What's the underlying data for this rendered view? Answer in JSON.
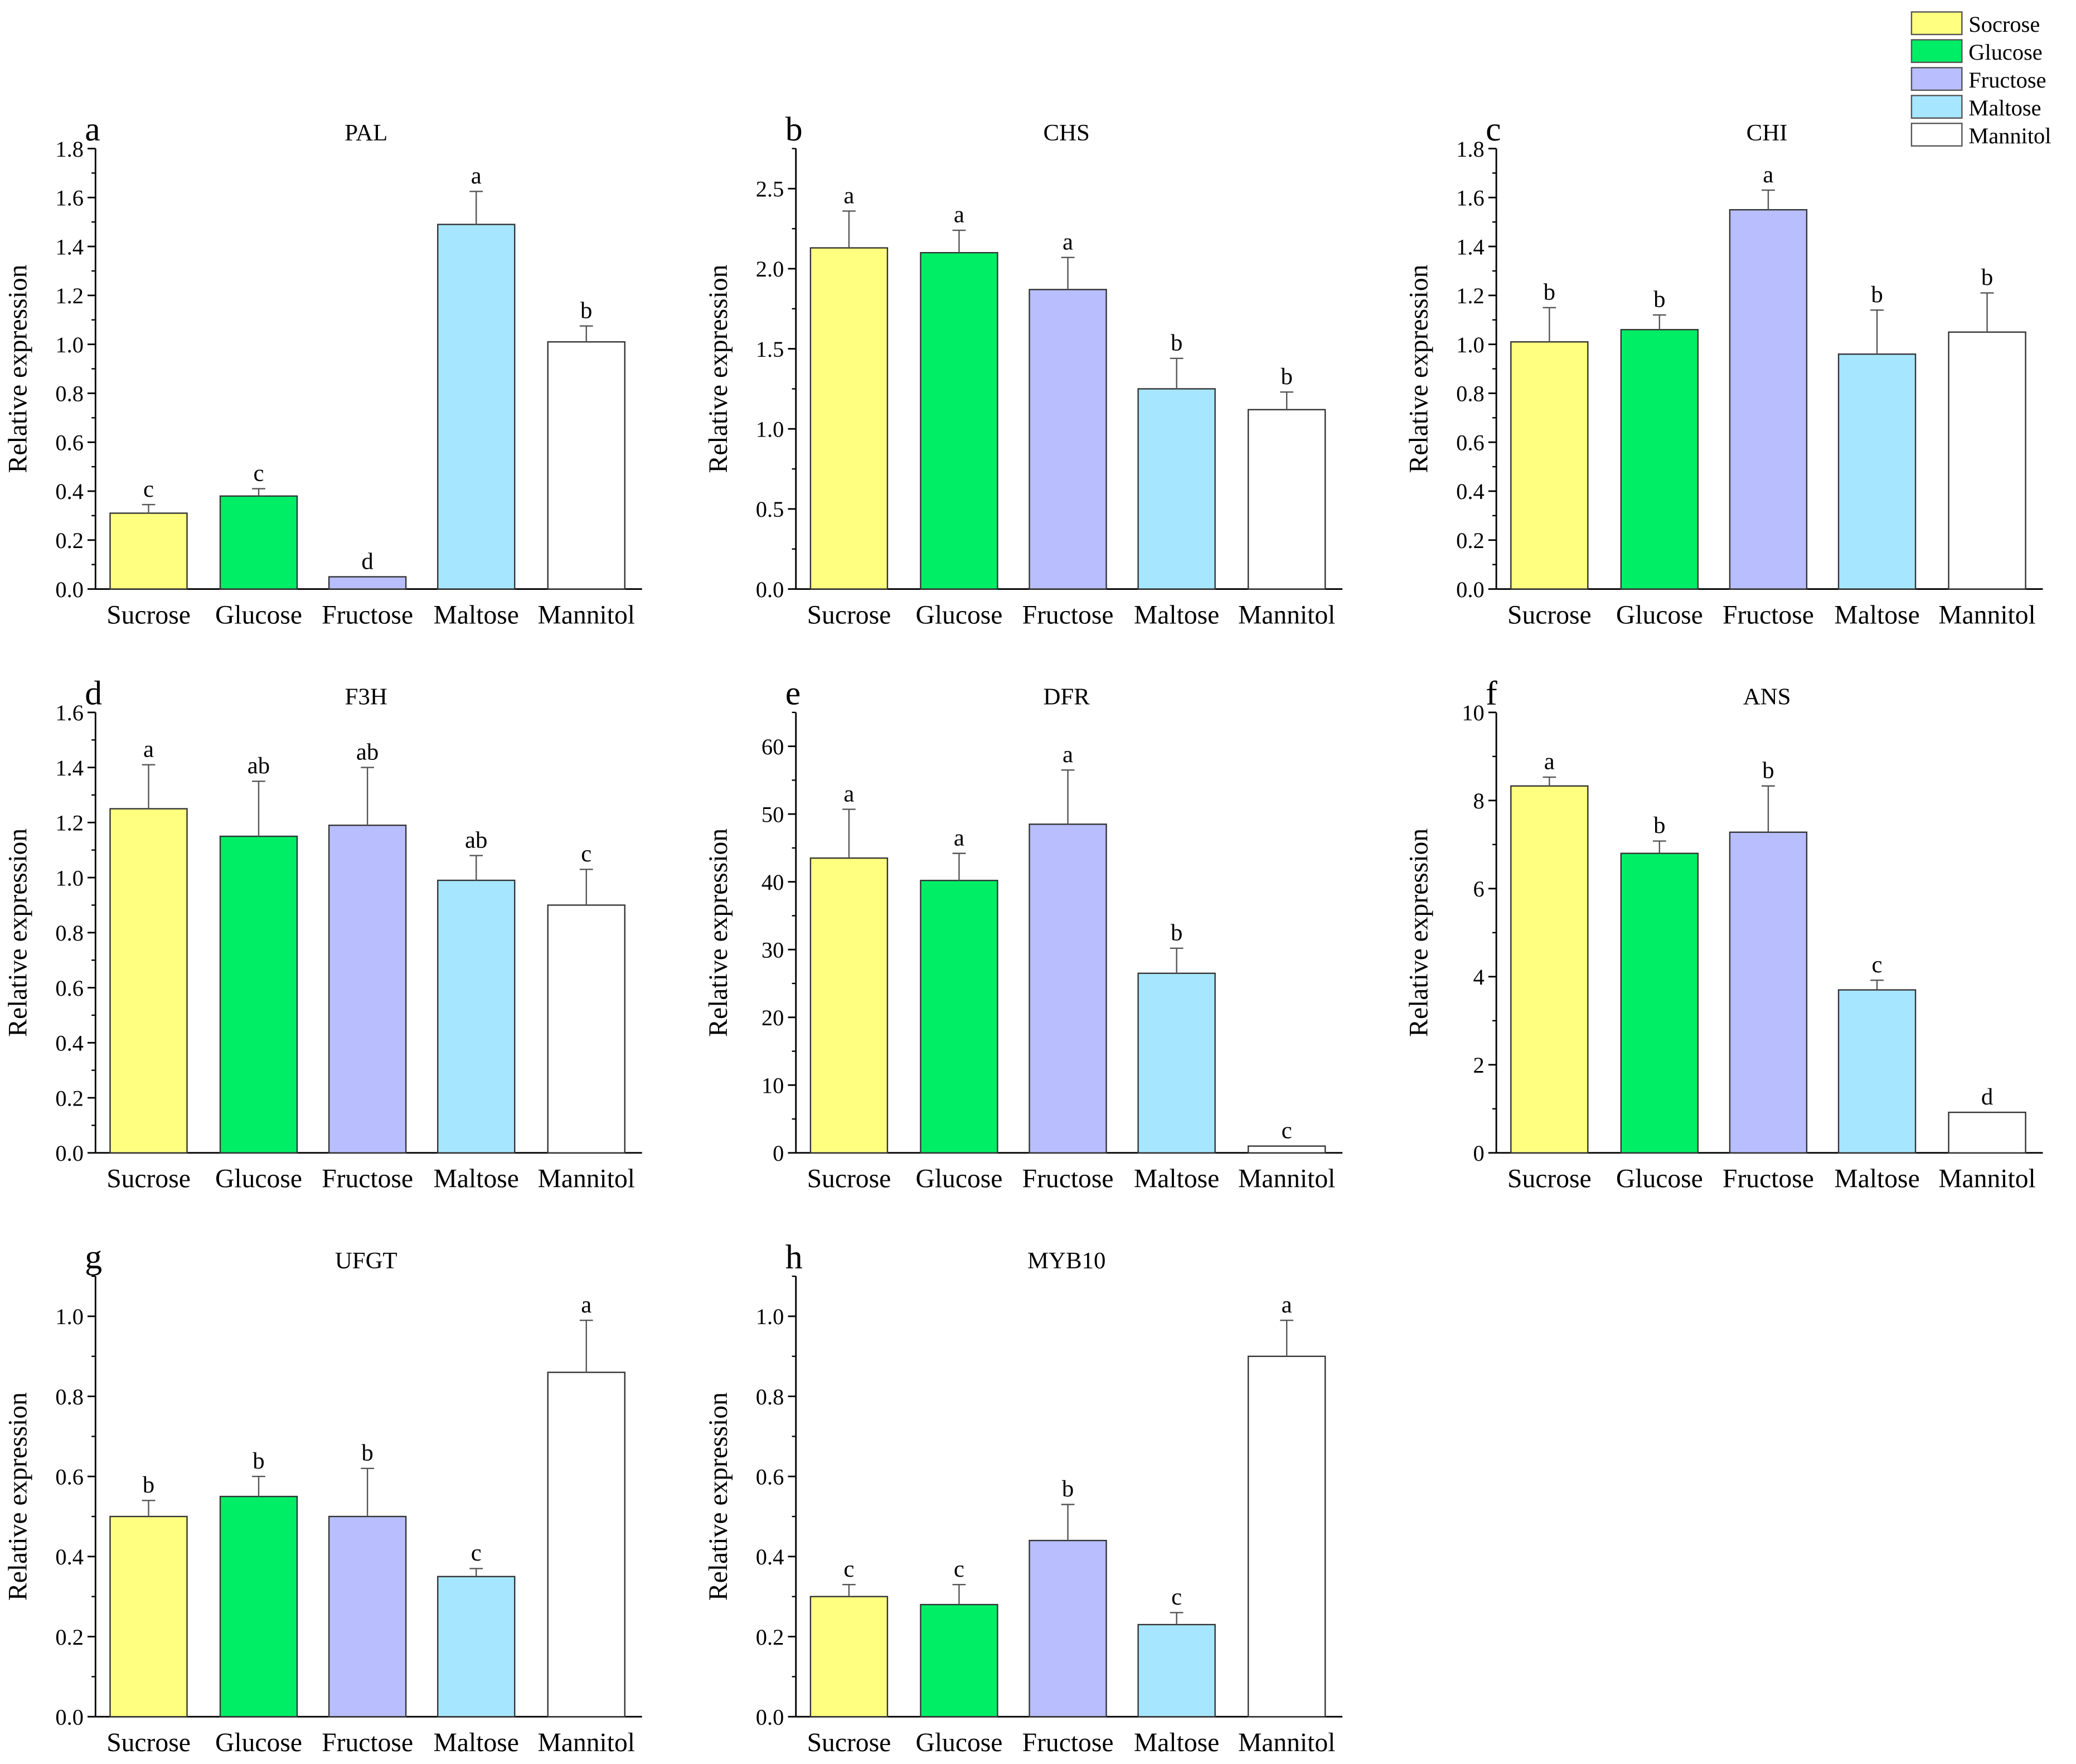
{
  "legend": {
    "placement": "top-right",
    "entries": [
      {
        "label": "Socrose",
        "color": "#FFFF80"
      },
      {
        "label": "Glucose",
        "color": "#00EE66"
      },
      {
        "label": "Fructose",
        "color": "#B8BEFF"
      },
      {
        "label": "Maltose",
        "color": "#A6E6FF"
      },
      {
        "label": "Mannitol",
        "color": "#FFFFFF"
      }
    ]
  },
  "chart_data": [
    {
      "type": "bar",
      "panel": "a",
      "title": "PAL",
      "ylabel": "Relative expression",
      "categories": [
        "Sucrose",
        "Glucose",
        "Fructose",
        "Maltose",
        "Mannitol"
      ],
      "values": [
        0.31,
        0.38,
        0.05,
        1.49,
        1.01
      ],
      "errors": [
        0.035,
        0.03,
        0.0,
        0.135,
        0.065
      ],
      "letters": [
        "c",
        "c",
        "d",
        "a",
        "b"
      ],
      "ylim": [
        0,
        1.8
      ],
      "yticks": [
        "0.0",
        "0.2",
        "0.4",
        "0.6",
        "0.8",
        "1.0",
        "1.2",
        "1.4",
        "1.6",
        "1.8"
      ]
    },
    {
      "type": "bar",
      "panel": "b",
      "title": "CHS",
      "ylabel": "Relative expression",
      "categories": [
        "Sucrose",
        "Glucose",
        "Fructose",
        "Maltose",
        "Mannitol"
      ],
      "values": [
        2.13,
        2.1,
        1.87,
        1.25,
        1.12
      ],
      "errors": [
        0.23,
        0.14,
        0.2,
        0.19,
        0.11
      ],
      "letters": [
        "a",
        "a",
        "a",
        "b",
        "b"
      ],
      "ylim": [
        0,
        2.75
      ],
      "yticks": [
        "0.0",
        "0.5",
        "1.0",
        "1.5",
        "2.0",
        "2.5"
      ]
    },
    {
      "type": "bar",
      "panel": "c",
      "title": "CHI",
      "ylabel": "Relative expression",
      "categories": [
        "Sucrose",
        "Glucose",
        "Fructose",
        "Maltose",
        "Mannitol"
      ],
      "values": [
        1.01,
        1.06,
        1.55,
        0.96,
        1.05
      ],
      "errors": [
        0.14,
        0.06,
        0.08,
        0.18,
        0.16
      ],
      "letters": [
        "b",
        "b",
        "a",
        "b",
        "b"
      ],
      "ylim": [
        0,
        1.8
      ],
      "yticks": [
        "0.0",
        "0.2",
        "0.4",
        "0.6",
        "0.8",
        "1.0",
        "1.2",
        "1.4",
        "1.6",
        "1.8"
      ]
    },
    {
      "type": "bar",
      "panel": "d",
      "title": "F3H",
      "ylabel": "Relative expression",
      "categories": [
        "Sucrose",
        "Glucose",
        "Fructose",
        "Maltose",
        "Mannitol"
      ],
      "values": [
        1.25,
        1.15,
        1.19,
        0.99,
        0.9
      ],
      "errors": [
        0.16,
        0.2,
        0.21,
        0.09,
        0.13
      ],
      "letters": [
        "a",
        "ab",
        "ab",
        "ab",
        "c"
      ],
      "ylim": [
        0,
        1.6
      ],
      "yticks": [
        "0.0",
        "0.2",
        "0.4",
        "0.6",
        "0.8",
        "1.0",
        "1.2",
        "1.4",
        "1.6"
      ]
    },
    {
      "type": "bar",
      "panel": "e",
      "title": "DFR",
      "ylabel": "Relative expression",
      "categories": [
        "Sucrose",
        "Glucose",
        "Fructose",
        "Maltose",
        "Mannitol"
      ],
      "values": [
        43.5,
        40.2,
        48.5,
        26.5,
        1.0
      ],
      "errors": [
        7.2,
        4.0,
        8.0,
        3.7,
        0.0
      ],
      "letters": [
        "a",
        "a",
        "a",
        "b",
        "c"
      ],
      "ylim": [
        0,
        65
      ],
      "yticks": [
        "0",
        "10",
        "20",
        "30",
        "40",
        "50",
        "60"
      ]
    },
    {
      "type": "bar",
      "panel": "f",
      "title": "ANS",
      "ylabel": "Relative expression",
      "categories": [
        "Sucrose",
        "Glucose",
        "Fructose",
        "Maltose",
        "Mannitol"
      ],
      "values": [
        8.33,
        6.8,
        7.28,
        3.7,
        0.92
      ],
      "errors": [
        0.2,
        0.28,
        1.05,
        0.22,
        0.0
      ],
      "letters": [
        "a",
        "b",
        "b",
        "c",
        "d"
      ],
      "ylim": [
        0,
        10
      ],
      "yticks": [
        "0",
        "2",
        "4",
        "6",
        "8",
        "10"
      ]
    },
    {
      "type": "bar",
      "panel": "g",
      "title": "UFGT",
      "ylabel": "Relative expression",
      "categories": [
        "Sucrose",
        "Glucose",
        "Fructose",
        "Maltose",
        "Mannitol"
      ],
      "values": [
        0.5,
        0.55,
        0.5,
        0.35,
        0.86
      ],
      "errors": [
        0.04,
        0.05,
        0.12,
        0.02,
        0.13
      ],
      "letters": [
        "b",
        "b",
        "b",
        "c",
        "a"
      ],
      "ylim": [
        0,
        1.1
      ],
      "yticks": [
        "0.0",
        "0.2",
        "0.4",
        "0.6",
        "0.8",
        "1.0"
      ]
    },
    {
      "type": "bar",
      "panel": "h",
      "title": "MYB10",
      "ylabel": "Relative expression",
      "categories": [
        "Sucrose",
        "Glucose",
        "Fructose",
        "Maltose",
        "Mannitol"
      ],
      "values": [
        0.3,
        0.28,
        0.44,
        0.23,
        0.9
      ],
      "errors": [
        0.03,
        0.05,
        0.09,
        0.03,
        0.09
      ],
      "letters": [
        "c",
        "c",
        "b",
        "c",
        "a"
      ],
      "ylim": [
        0,
        1.1
      ],
      "yticks": [
        "0.0",
        "0.2",
        "0.4",
        "0.6",
        "0.8",
        "1.0"
      ]
    }
  ]
}
